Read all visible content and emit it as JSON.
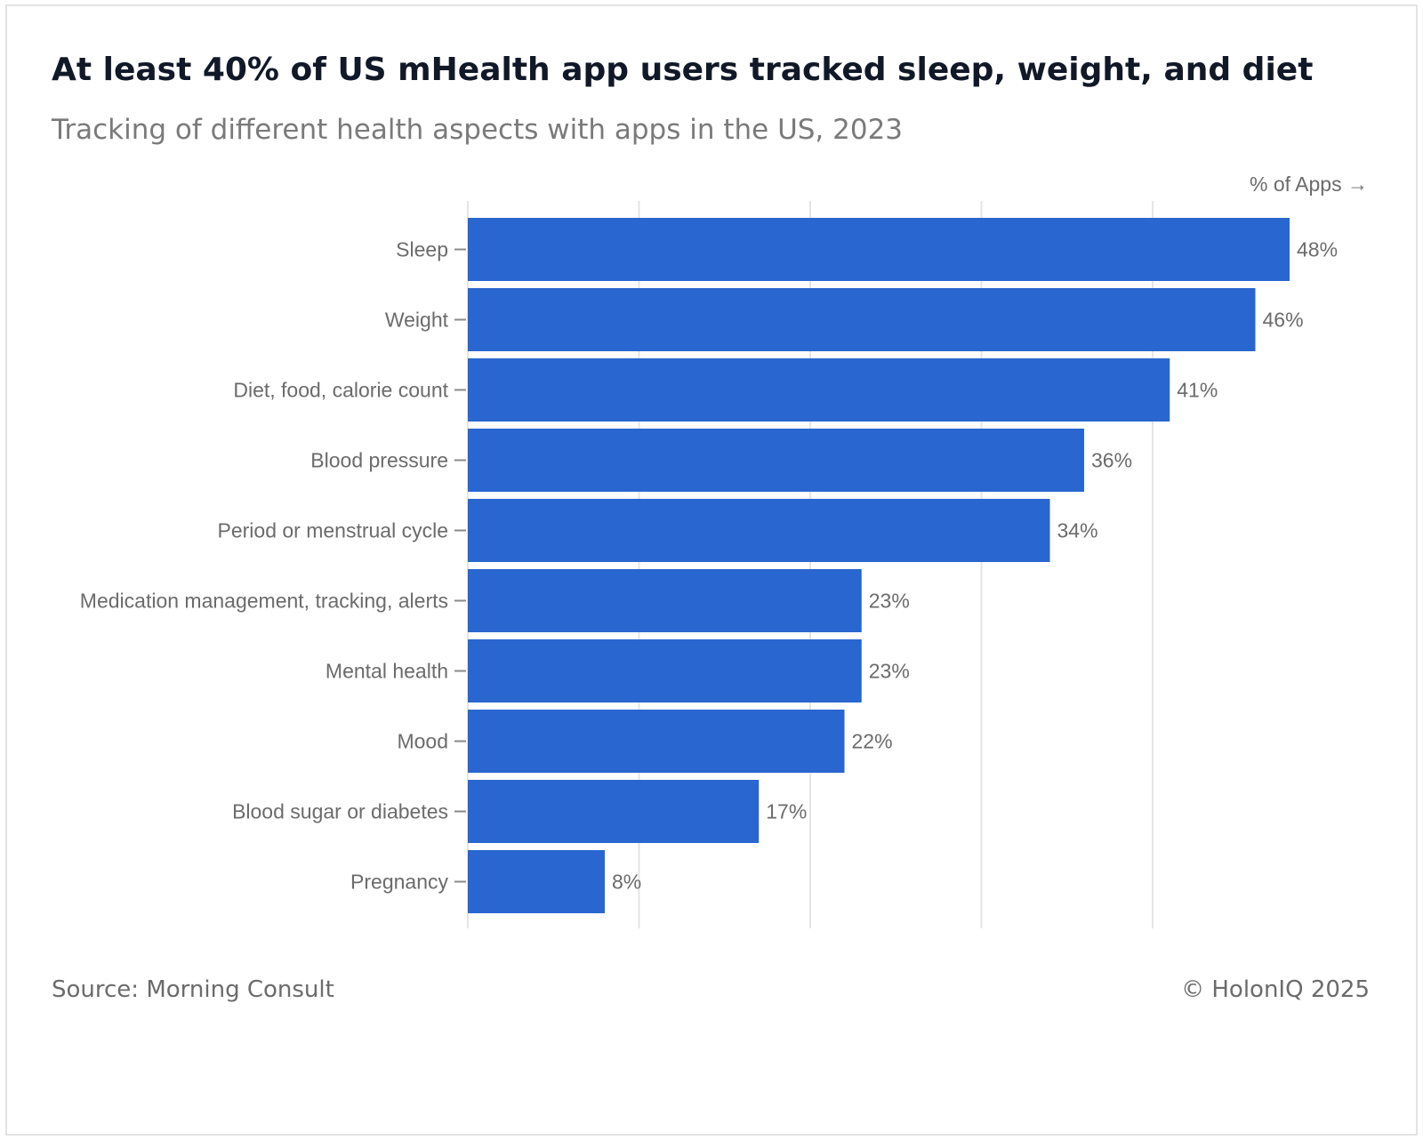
{
  "header": {
    "title": "At least 40% of US mHealth app users tracked sleep, weight, and diet",
    "subtitle": "Tracking of different health aspects with apps in the US, 2023"
  },
  "axis": {
    "unit_label": "% of Apps →"
  },
  "footer": {
    "source": "Source: Morning Consult",
    "copyright": "© HolonIQ 2025"
  },
  "colors": {
    "bar": "#2966cf",
    "grid": "#e5e5e5",
    "label": "#6b6b6b"
  },
  "chart_data": {
    "type": "bar",
    "orientation": "horizontal",
    "categories": [
      "Sleep",
      "Weight",
      "Diet, food, calorie count",
      "Blood pressure",
      "Period or menstrual cycle",
      "Medication management, tracking, alerts",
      "Mental health",
      "Mood",
      "Blood sugar or diabetes",
      "Pregnancy"
    ],
    "values": [
      48,
      46,
      41,
      36,
      34,
      23,
      23,
      22,
      17,
      8
    ],
    "data_labels": [
      "48%",
      "46%",
      "41%",
      "36%",
      "34%",
      "23%",
      "23%",
      "22%",
      "17%",
      "8%"
    ],
    "xlabel": "% of Apps",
    "xlim": [
      0,
      50
    ],
    "grid": true,
    "title": "At least 40% of US mHealth app users tracked sleep, weight, and diet",
    "subtitle": "Tracking of different health aspects with apps in the US, 2023"
  }
}
